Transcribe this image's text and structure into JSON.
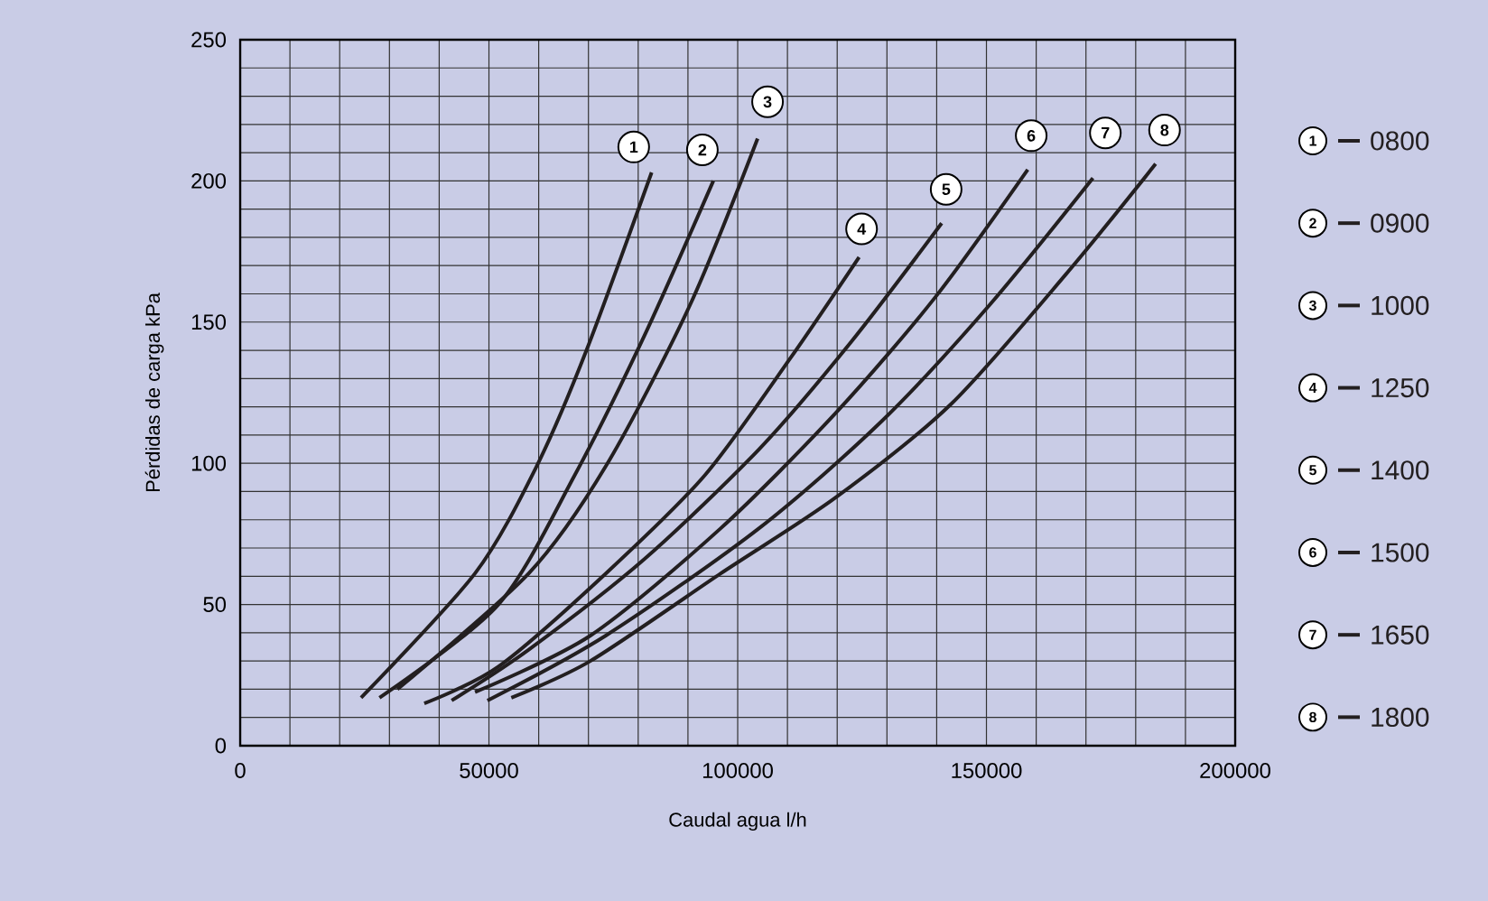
{
  "chart_data": {
    "type": "line",
    "xlabel": "Caudal agua l/h",
    "ylabel": "Pérdidas de carga kPa",
    "xlim": [
      0,
      200000
    ],
    "ylim": [
      0,
      250
    ],
    "xticks": [
      0,
      {
        "value": 10000,
        "label": null
      },
      {
        "value": 20000,
        "label": null
      },
      {
        "value": 30000,
        "label": null
      },
      {
        "value": 40000,
        "label": null
      },
      50000,
      {
        "value": 60000,
        "label": null
      },
      {
        "value": 70000,
        "label": null
      },
      {
        "value": 80000,
        "label": null
      },
      {
        "value": 90000,
        "label": null
      },
      100000,
      {
        "value": 110000,
        "label": null
      },
      {
        "value": 120000,
        "label": null
      },
      {
        "value": 130000,
        "label": null
      },
      {
        "value": 140000,
        "label": null
      },
      150000,
      {
        "value": 160000,
        "label": null
      },
      {
        "value": 170000,
        "label": null
      },
      {
        "value": 180000,
        "label": null
      },
      {
        "value": 190000,
        "label": null
      },
      200000
    ],
    "yticks": [
      0,
      {
        "value": 10,
        "label": null
      },
      {
        "value": 20,
        "label": null
      },
      {
        "value": 30,
        "label": null
      },
      {
        "value": 40,
        "label": null
      },
      50,
      {
        "value": 60,
        "label": null
      },
      {
        "value": 70,
        "label": null
      },
      {
        "value": 80,
        "label": null
      },
      {
        "value": 90,
        "label": null
      },
      100,
      {
        "value": 110,
        "label": null
      },
      {
        "value": 120,
        "label": null
      },
      {
        "value": 130,
        "label": null
      },
      {
        "value": 140,
        "label": null
      },
      150,
      {
        "value": 160,
        "label": null
      },
      {
        "value": 170,
        "label": null
      },
      {
        "value": 180,
        "label": null
      },
      {
        "value": 190,
        "label": null
      },
      200,
      {
        "value": 210,
        "label": null
      },
      {
        "value": 220,
        "label": null
      },
      {
        "value": 230,
        "label": null
      },
      {
        "value": 240,
        "label": null
      },
      250
    ],
    "grid": true,
    "legend": "right",
    "marker": "none",
    "line_style": "solid",
    "series": [
      {
        "name": "0800",
        "color": "#231f20",
        "x": [
          24300,
          47200,
          59600,
          69600,
          82700
        ],
        "values": [
          17,
          61,
          99,
          140,
          203
        ]
      },
      {
        "name": "0900",
        "color": "#231f20",
        "x": [
          28000,
          51900,
          67300,
          81200,
          95100
        ],
        "values": [
          17,
          50,
          96,
          145,
          200
        ]
      },
      {
        "name": "1000",
        "color": "#231f20",
        "x": [
          31600,
          58000,
          73500,
          90400,
          104000
        ],
        "values": [
          20,
          61,
          99,
          156,
          215
        ]
      },
      {
        "name": "1250",
        "color": "#231f20",
        "x": [
          37000,
          51900,
          73500,
          93500,
          110500,
          124400
        ],
        "values": [
          15,
          28,
          61,
          96,
          137,
          173
        ]
      },
      {
        "name": "1400",
        "color": "#231f20",
        "x": [
          42500,
          58000,
          81200,
          104300,
          122800,
          141000
        ],
        "values": [
          16,
          34,
          66,
          105,
          143,
          185
        ]
      },
      {
        "name": "1500",
        "color": "#231f20",
        "x": [
          47200,
          70400,
          96600,
          119800,
          139800,
          158300
        ],
        "values": [
          19,
          39,
          77,
          118,
          159,
          204
        ]
      },
      {
        "name": "1650",
        "color": "#231f20",
        "x": [
          49700,
          73500,
          104300,
          129000,
          150600,
          171400
        ],
        "values": [
          16,
          39,
          77,
          115,
          156,
          201
        ]
      },
      {
        "name": "1800",
        "color": "#231f20",
        "x": [
          54500,
          70400,
          96600,
          119800,
          142900,
          166000,
          184000
        ],
        "values": [
          17,
          30,
          61,
          88,
          121,
          167,
          206
        ]
      }
    ],
    "annotations": [
      {
        "text": "1",
        "x": 79100,
        "y": 212
      },
      {
        "text": "2",
        "x": 92900,
        "y": 211
      },
      {
        "text": "3",
        "x": 106000,
        "y": 228
      },
      {
        "text": "4",
        "x": 124900,
        "y": 183
      },
      {
        "text": "5",
        "x": 141900,
        "y": 197
      },
      {
        "text": "6",
        "x": 159000,
        "y": 216
      },
      {
        "text": "7",
        "x": 173900,
        "y": 217
      },
      {
        "text": "8",
        "x": 185800,
        "y": 218
      }
    ]
  }
}
